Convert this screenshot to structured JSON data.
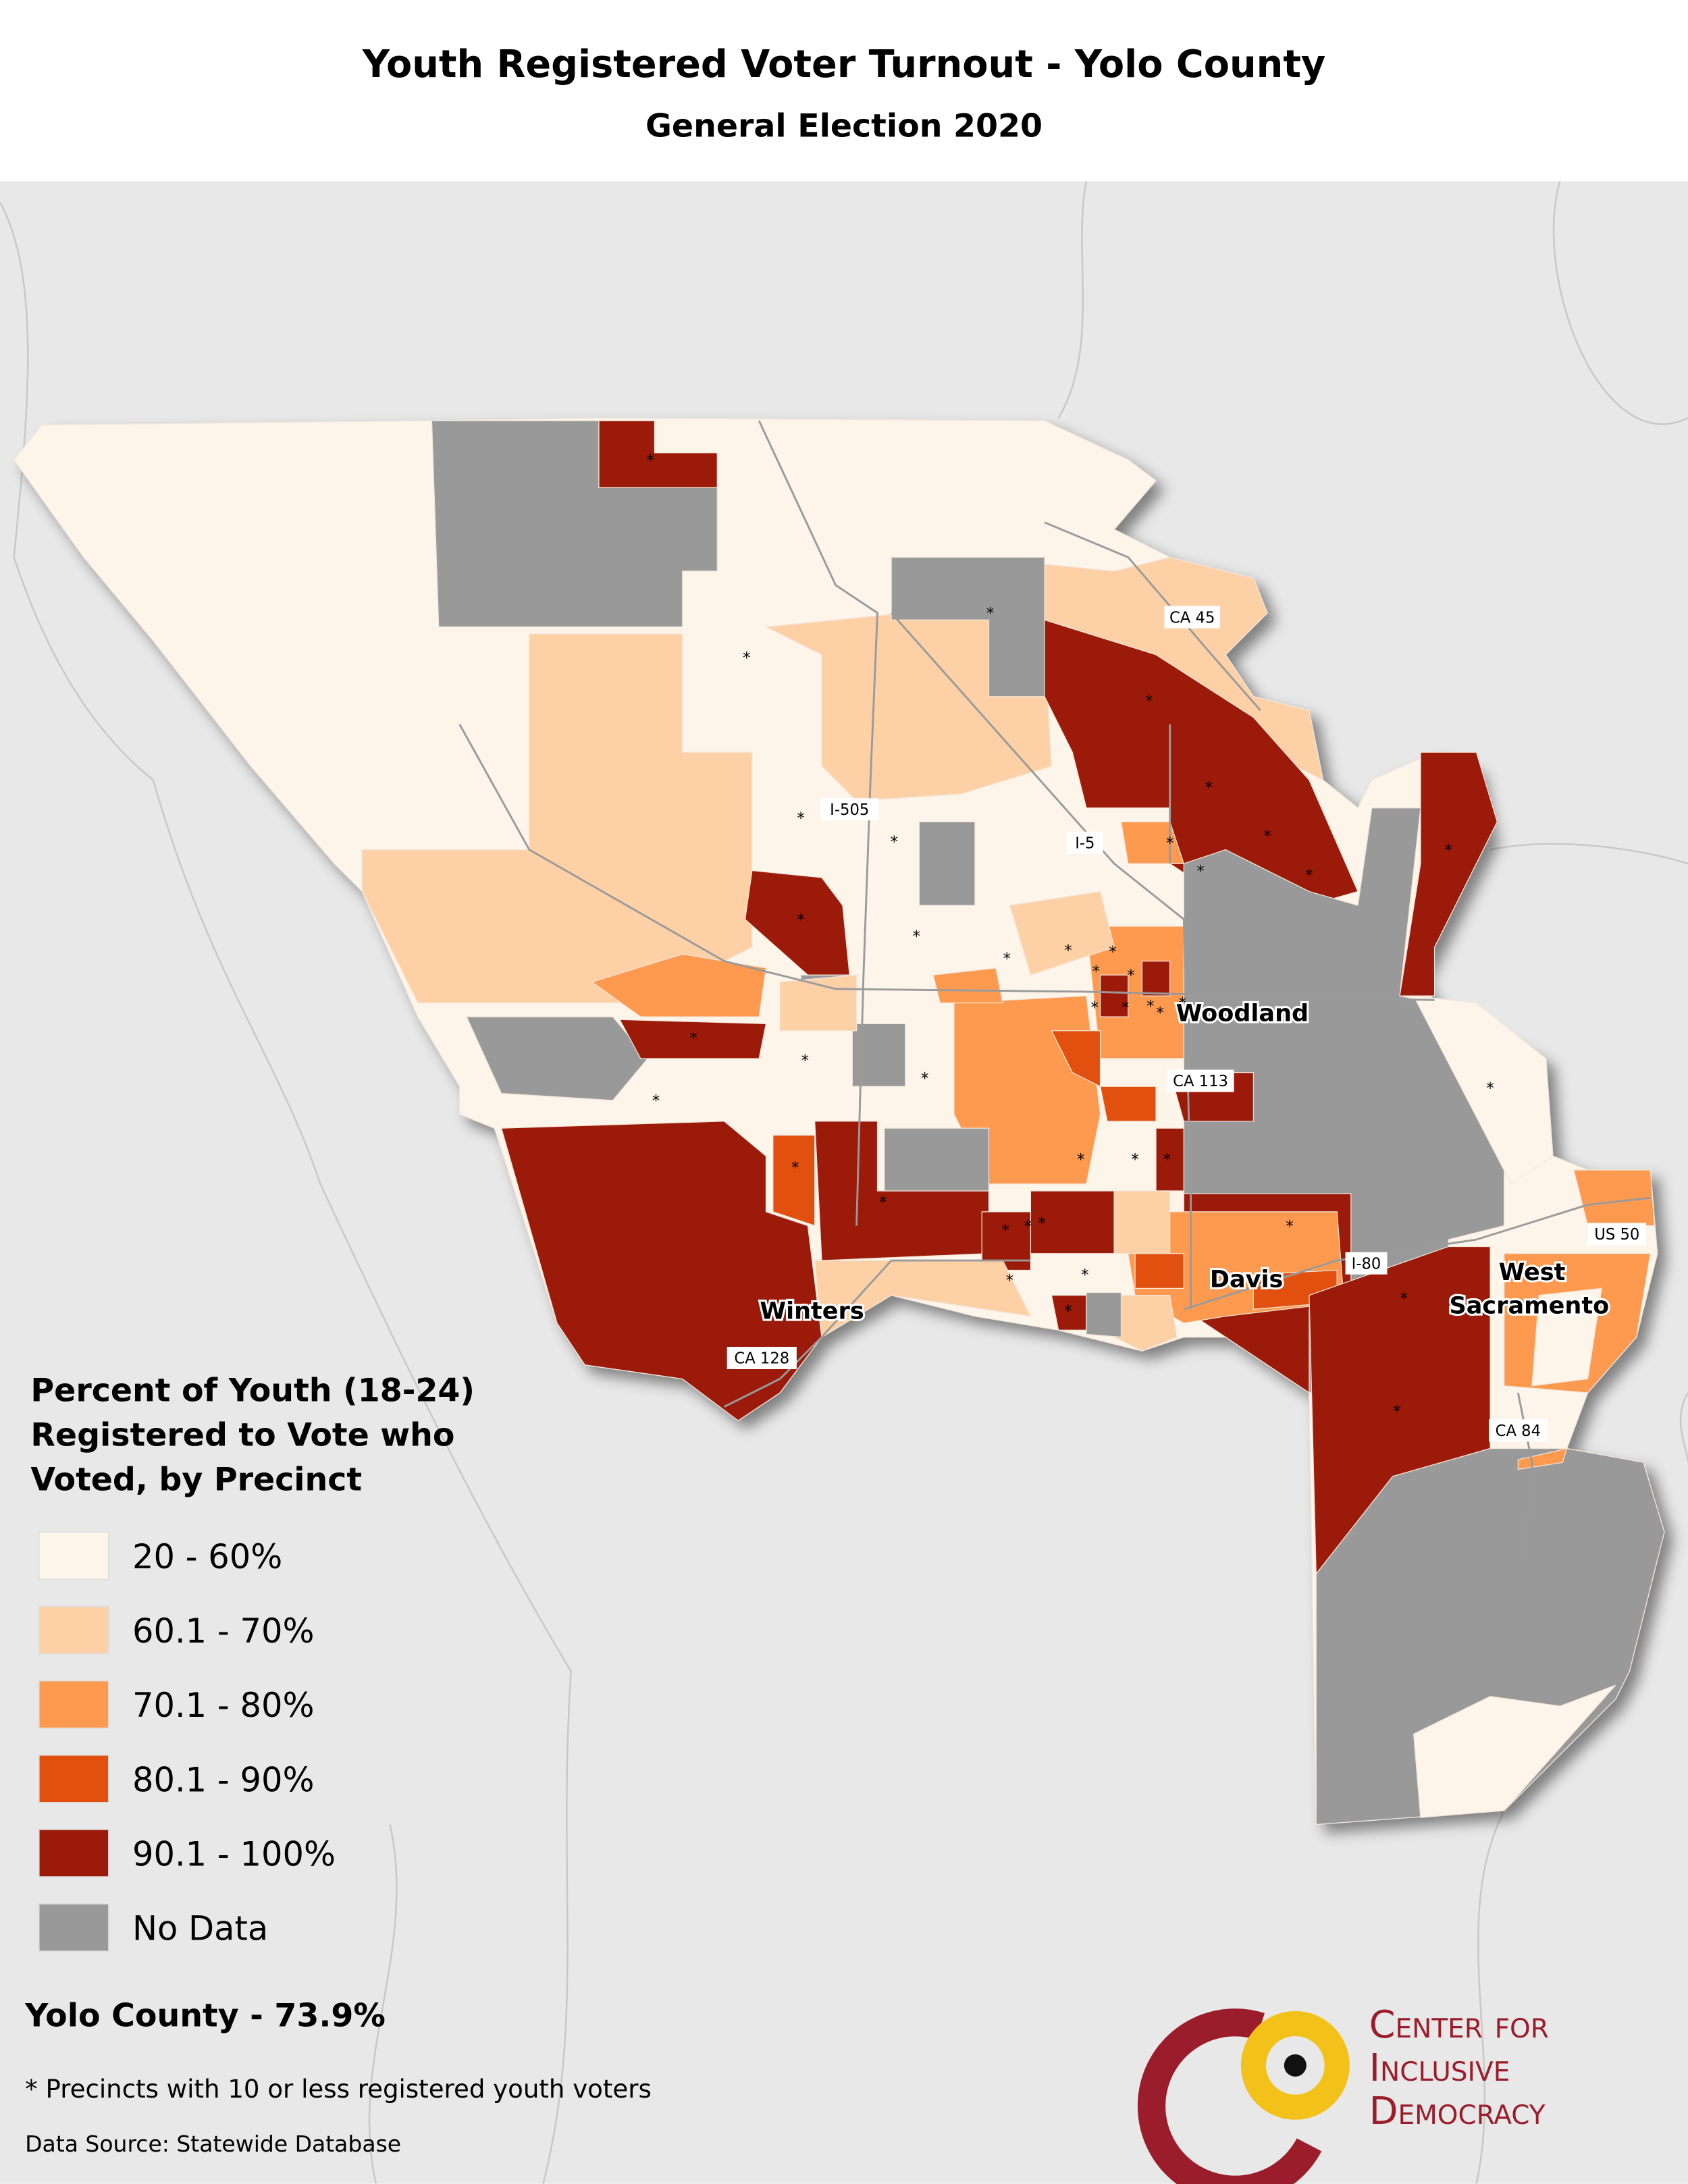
{
  "header": {
    "title": "Youth Registered Voter Turnout - Yolo County",
    "subtitle": "General Election 2020"
  },
  "legend": {
    "title_lines": [
      "Percent of Youth (18-24)",
      "Registered to Vote who",
      "Voted, by Precinct"
    ],
    "items": [
      {
        "label": "20 - 60%",
        "color": "#fdf4ea"
      },
      {
        "label": "60.1 - 70%",
        "color": "#fdd0a6"
      },
      {
        "label": "70.1 - 80%",
        "color": "#fd9a4f"
      },
      {
        "label": "80.1 - 90%",
        "color": "#e1500f"
      },
      {
        "label": "90.1 - 100%",
        "color": "#9b1a0a"
      },
      {
        "label": "No Data",
        "color": "#999999"
      }
    ]
  },
  "summary": "Yolo County - 73.9%",
  "footnote": "* Precincts with 10 or less registered youth voters",
  "source": "Data Source: Statewide Database",
  "precinct_marker": "*",
  "places": [
    {
      "lines": [
        "Woodland"
      ]
    },
    {
      "lines": [
        "Davis"
      ]
    },
    {
      "lines": [
        "Winters"
      ]
    },
    {
      "lines": [
        "West",
        "Sacramento"
      ]
    }
  ],
  "roads": [
    "CA 45",
    "I-505",
    "I-5",
    "CA 113",
    "I-80",
    "US 50",
    "CA 84",
    "CA 128"
  ],
  "logo": {
    "lines": [
      "Center for",
      "Inclusive",
      "Democracy"
    ]
  }
}
